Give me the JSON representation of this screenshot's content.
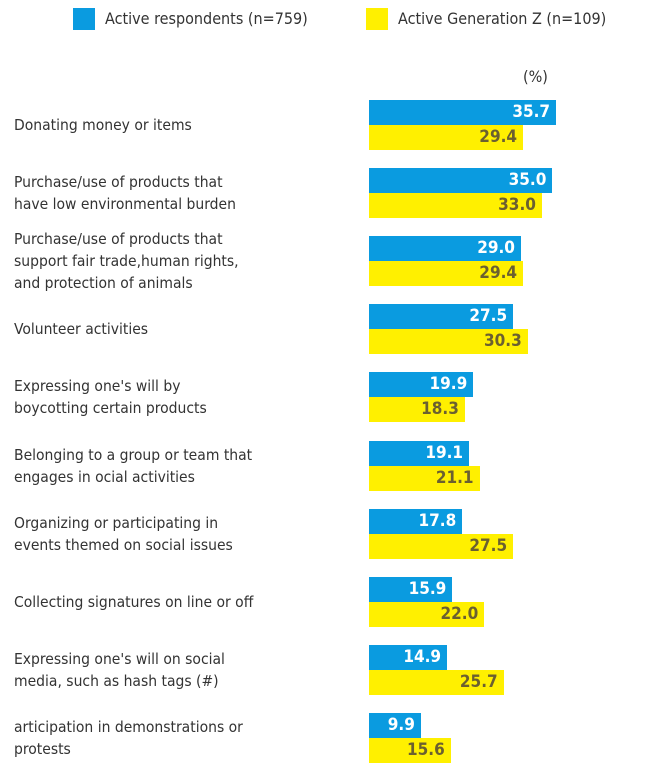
{
  "chart_data": {
    "type": "hbar",
    "unit_label": "(%)",
    "categories": [
      "Donating money or items",
      "Purchase/use of products that\nhave low environmental burden",
      "Purchase/use of products that\nsupport fair trade,human rights,\nand protection of animals",
      "Volunteer activities",
      "Expressing one's will by\nboycotting certain products",
      "Belonging to a group or team that\nengages in ocial activities",
      "Organizing or participating in\nevents themed on social issues",
      "Collecting signatures on line or off",
      "Expressing one's will on social\nmedia, such as hash tags (#)",
      "articipation in demonstrations or\nprotests"
    ],
    "series": [
      {
        "name": "Active respondents (n=759)",
        "color": "#0a9be0",
        "label_color": "#ffffff",
        "values": [
          35.7,
          35.0,
          29.0,
          27.5,
          19.9,
          19.1,
          17.8,
          15.9,
          14.9,
          9.9
        ],
        "value_labels": [
          "35.7",
          "35.0",
          "29.0",
          "27.5",
          "19.9",
          "19.1",
          "17.8",
          "15.9",
          "14.9",
          "9.9"
        ]
      },
      {
        "name": "Active Generation Z (n=109)",
        "color": "#fff000",
        "label_color": "#6b6030",
        "values": [
          29.4,
          33.0,
          29.4,
          30.3,
          18.3,
          21.1,
          27.5,
          22.0,
          25.7,
          15.6
        ],
        "value_labels": [
          "29.4",
          "33.0",
          "29.4",
          "30.3",
          "18.3",
          "21.1",
          "27.5",
          "22.0",
          "25.7",
          "15.6"
        ]
      }
    ]
  }
}
